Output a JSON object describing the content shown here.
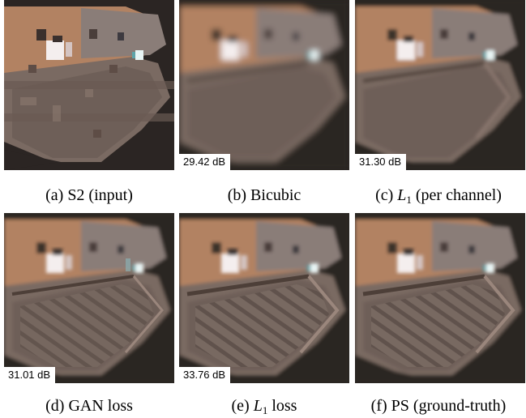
{
  "figure": {
    "panels": [
      {
        "id": "a",
        "caption_prefix": "(a) ",
        "caption_math": "",
        "caption_sub": "",
        "caption_rest": "S2 (input)",
        "psnr": "",
        "style": "pixelated"
      },
      {
        "id": "b",
        "caption_prefix": "(b) ",
        "caption_math": "",
        "caption_sub": "",
        "caption_rest": "Bicubic",
        "psnr": "29.42 dB",
        "style": "blurry"
      },
      {
        "id": "c",
        "caption_prefix": "(c) ",
        "caption_math": "L",
        "caption_sub": "1",
        "caption_rest": " (per channel)",
        "psnr": "31.30 dB",
        "style": "smooth"
      },
      {
        "id": "d",
        "caption_prefix": "(d) ",
        "caption_math": "",
        "caption_sub": "",
        "caption_rest": "GAN loss",
        "psnr": "31.01 dB",
        "style": "sharp"
      },
      {
        "id": "e",
        "caption_prefix": "(e) ",
        "caption_math": "L",
        "caption_sub": "1",
        "caption_rest": " loss",
        "psnr": "33.76 dB",
        "style": "sharp"
      },
      {
        "id": "f",
        "caption_prefix": "(f) ",
        "caption_math": "",
        "caption_sub": "",
        "caption_rest": "PS (ground-truth)",
        "psnr": "",
        "style": "sharp"
      }
    ]
  },
  "colors": {
    "background": "#2a2422",
    "field": "#7a6a62",
    "building": "#b08060",
    "highlight": "#f4eeee"
  }
}
